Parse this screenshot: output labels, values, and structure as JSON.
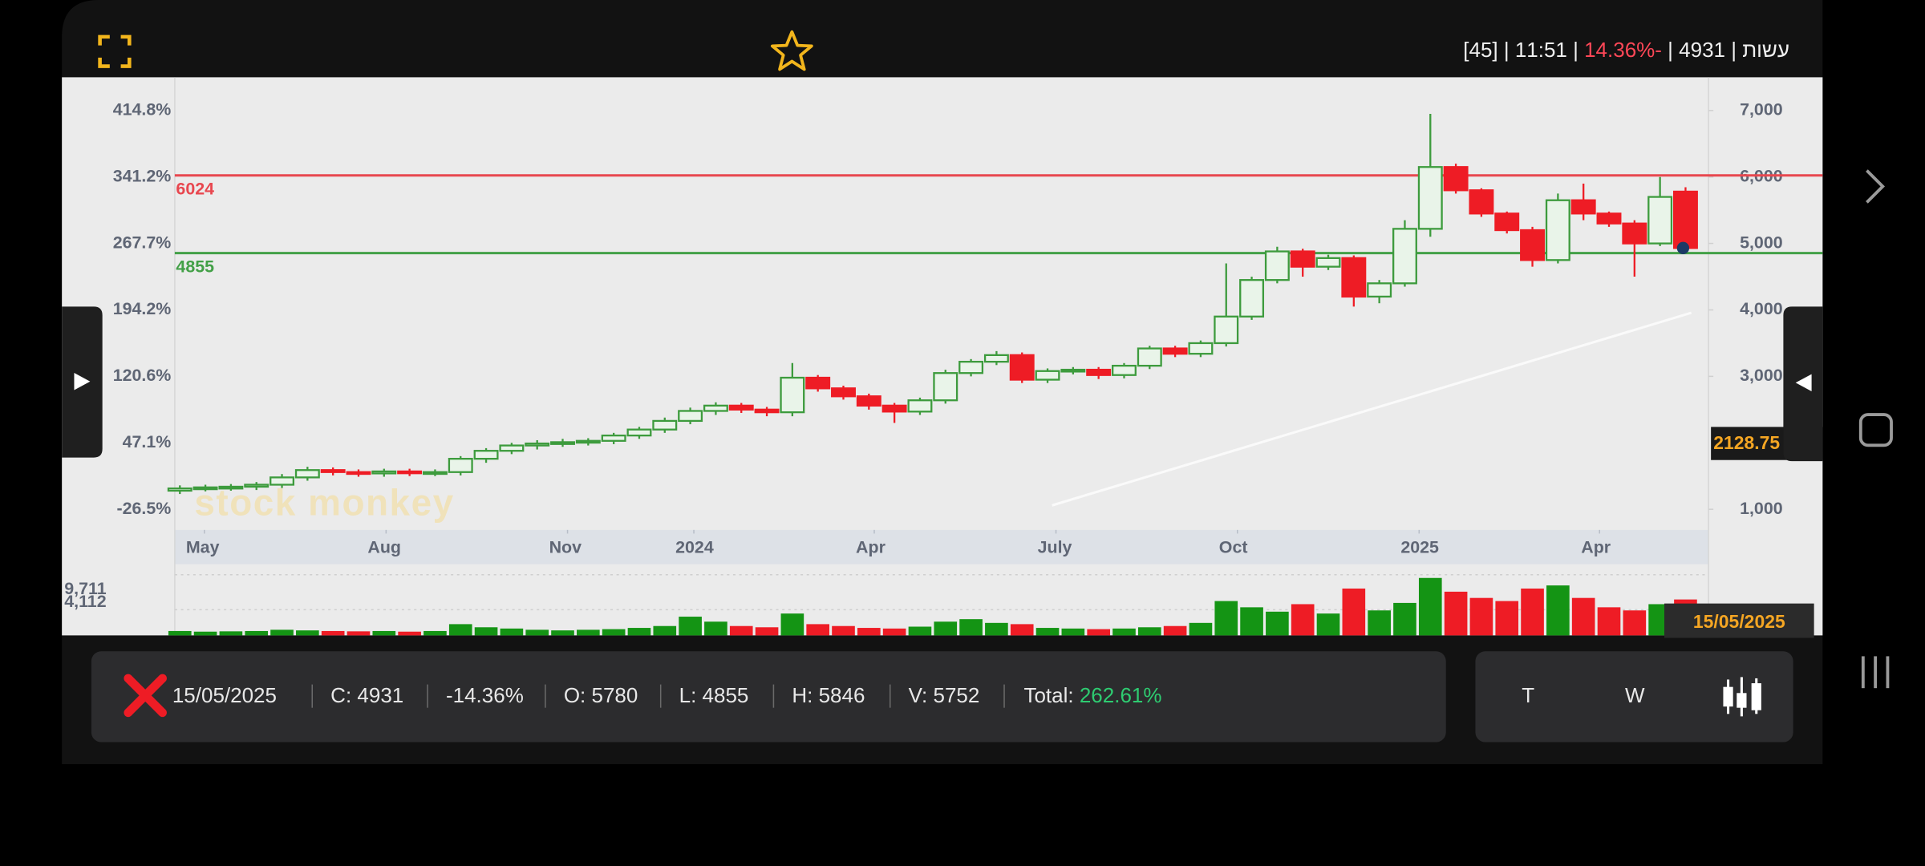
{
  "top_bar": {
    "status": "[45] | 11:51 | ",
    "change": "14.36%-",
    "quote": " | 4931 | עשות"
  },
  "chart_data": {
    "type": "candlestick",
    "open": [
      1280,
      1314,
      1330,
      1340,
      1370,
      1480,
      1590,
      1560,
      1540,
      1570,
      1545,
      1560,
      1760,
      1880,
      1960,
      1990,
      2010,
      2030,
      2110,
      2200,
      2330,
      2480,
      2560,
      2500,
      2460,
      2980,
      2820,
      2700,
      2560,
      2470,
      2640,
      3050,
      3220,
      3320,
      2950,
      3080,
      3100,
      3020,
      3160,
      3420,
      3340,
      3500,
      3900,
      4450,
      4880,
      4650,
      4780,
      4200,
      4400,
      5220,
      6150,
      5800,
      5450,
      5200,
      4750,
      5650,
      5450,
      5300,
      5000,
      5780
    ],
    "high": [
      1360,
      1370,
      1380,
      1410,
      1530,
      1640,
      1630,
      1600,
      1610,
      1610,
      1600,
      1800,
      1920,
      2000,
      2040,
      2060,
      2070,
      2150,
      2240,
      2380,
      2530,
      2610,
      2600,
      2540,
      3200,
      3020,
      2860,
      2740,
      2600,
      2680,
      3100,
      3260,
      3380,
      3360,
      3120,
      3140,
      3140,
      3200,
      3460,
      3460,
      3540,
      4700,
      4500,
      4950,
      4920,
      4830,
      4820,
      4450,
      5350,
      6950,
      6200,
      5830,
      5480,
      5250,
      5750,
      5900,
      5480,
      5350,
      6000,
      5846
    ],
    "low": [
      1230,
      1270,
      1280,
      1290,
      1320,
      1430,
      1510,
      1490,
      1490,
      1500,
      1500,
      1510,
      1700,
      1830,
      1900,
      1940,
      1960,
      1980,
      2060,
      2150,
      2280,
      2420,
      2450,
      2400,
      2400,
      2770,
      2650,
      2500,
      2300,
      2420,
      2590,
      3000,
      3170,
      2900,
      2900,
      3030,
      2960,
      2970,
      3110,
      3290,
      3290,
      3450,
      3850,
      4400,
      4500,
      4600,
      4050,
      4100,
      4350,
      5100,
      5750,
      5400,
      5150,
      4650,
      4700,
      5350,
      5250,
      4500,
      4960,
      4855
    ],
    "close": [
      1314,
      1330,
      1340,
      1370,
      1480,
      1590,
      1560,
      1540,
      1570,
      1545,
      1560,
      1760,
      1880,
      1960,
      1990,
      2010,
      2030,
      2110,
      2200,
      2330,
      2480,
      2560,
      2500,
      2460,
      2980,
      2820,
      2700,
      2560,
      2470,
      2640,
      3050,
      3220,
      3320,
      2950,
      3080,
      3100,
      3020,
      3160,
      3420,
      3340,
      3500,
      3900,
      4450,
      4880,
      4650,
      4780,
      4200,
      4400,
      5220,
      6150,
      5800,
      5450,
      5200,
      4750,
      5650,
      5450,
      5300,
      5000,
      5700,
      4931
    ],
    "volume": [
      700,
      600,
      650,
      700,
      900,
      800,
      700,
      650,
      700,
      600,
      700,
      1800,
      1300,
      1100,
      900,
      800,
      900,
      1000,
      1200,
      1500,
      3000,
      2200,
      1500,
      1300,
      3500,
      1800,
      1500,
      1200,
      1100,
      1400,
      2200,
      2600,
      2000,
      1800,
      1200,
      1100,
      1000,
      1100,
      1300,
      1500,
      2000,
      5500,
      4500,
      3800,
      5000,
      3500,
      7500,
      4000,
      5200,
      9200,
      7000,
      6000,
      5500,
      7500,
      8000,
      6000,
      4500,
      4000,
      5000,
      5752
    ],
    "up_color": "#3d9b3d",
    "down_color": "#ee1c25",
    "xlim": [
      -0.2,
      59.9
    ],
    "xticks": [
      {
        "value": 0.96,
        "label": "May"
      },
      {
        "value": 8.08,
        "label": "Aug"
      },
      {
        "value": 15.19,
        "label": "Nov"
      },
      {
        "value": 20.14,
        "label": "2024"
      },
      {
        "value": 27.21,
        "label": "Apr"
      },
      {
        "value": 34.33,
        "label": "July"
      },
      {
        "value": 41.44,
        "label": "Oct"
      },
      {
        "value": 48.56,
        "label": "2025"
      },
      {
        "value": 55.63,
        "label": "Apr"
      }
    ],
    "ylim": [
      690,
      7500
    ],
    "yticks": [
      {
        "value": 7000,
        "label": "7,000"
      },
      {
        "value": 6000,
        "label": "6,000"
      },
      {
        "value": 5000,
        "label": "5,000"
      },
      {
        "value": 4000,
        "label": "4,000"
      },
      {
        "value": 3000,
        "label": "3,000"
      },
      {
        "value": 1000,
        "label": "1,000"
      }
    ],
    "pct_ticks": [
      {
        "value": 7000,
        "label": "414.8%"
      },
      {
        "value": 6000,
        "label": "341.2%"
      },
      {
        "value": 5000,
        "label": "267.7%"
      },
      {
        "value": 4000,
        "label": "194.2%"
      },
      {
        "value": 3000,
        "label": "120.6%"
      },
      {
        "value": 2000,
        "label": "47.1%"
      },
      {
        "value": 1000,
        "label": "-26.5%"
      }
    ],
    "hlines": [
      {
        "value": 6024,
        "label": "6024",
        "color": "#e8474f"
      },
      {
        "value": 4855,
        "label": "4855",
        "color": "#43a047"
      }
    ],
    "vlim": [
      0,
      11000
    ],
    "vticks": [
      {
        "value": 9711,
        "label": "9,711"
      },
      {
        "value": 4112,
        "label": "4,112"
      }
    ],
    "price_cursor": {
      "value": 2128.75,
      "label": "2128.75"
    },
    "date_cursor": "15/05/2025",
    "watermark": "stock monkey"
  },
  "info_bar": {
    "date": "15/05/2025",
    "close": "C: 4931",
    "change": "-14.36%",
    "open": "O: 5780",
    "low": "L: 4855",
    "high": "H: 5846",
    "volume": "V: 5752",
    "total_label": "Total: ",
    "total": "262.61%"
  },
  "buttons": [
    "T",
    "W"
  ]
}
